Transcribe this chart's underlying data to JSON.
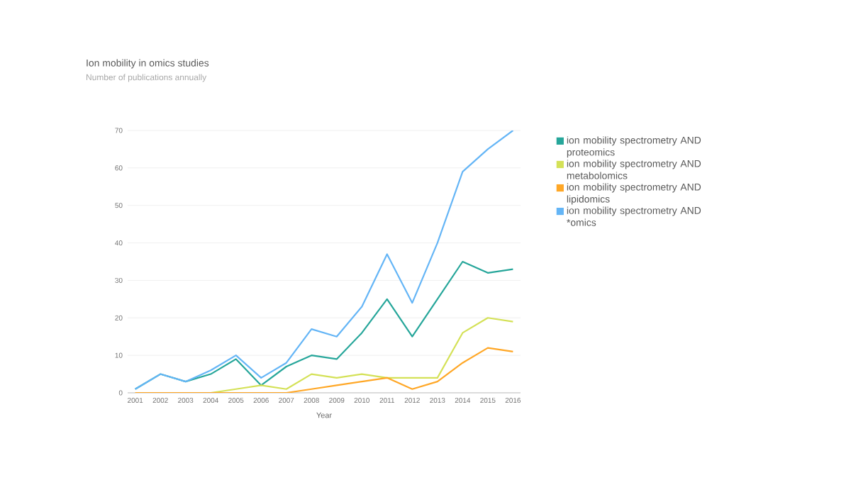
{
  "chart_data": {
    "type": "line",
    "title": "Ion mobility in omics studies",
    "subtitle": "Number of publications annually",
    "xlabel": "Year",
    "categories": [
      "2001",
      "2002",
      "2003",
      "2004",
      "2005",
      "2006",
      "2007",
      "2008",
      "2009",
      "2010",
      "2011",
      "2012",
      "2013",
      "2014",
      "2015",
      "2016"
    ],
    "series": [
      {
        "name": "ion mobility spectrometry AND proteomics",
        "color": "#26a69a",
        "values": [
          1,
          5,
          3,
          5,
          9,
          2,
          7,
          10,
          9,
          16,
          25,
          15,
          25,
          35,
          32,
          33
        ]
      },
      {
        "name": "ion mobility spectrometry AND metabolomics",
        "color": "#d4e157",
        "values": [
          0,
          0,
          0,
          0,
          1,
          2,
          1,
          5,
          4,
          5,
          4,
          4,
          4,
          16,
          20,
          19
        ]
      },
      {
        "name": "ion mobility spectrometry AND lipidomics",
        "color": "#ffa726",
        "values": [
          0,
          0,
          0,
          0,
          0,
          0,
          0,
          1,
          2,
          3,
          4,
          1,
          3,
          8,
          12,
          11
        ]
      },
      {
        "name": "ion mobility spectrometry AND *omics",
        "color": "#64b5f6",
        "values": [
          1,
          5,
          3,
          6,
          10,
          4,
          8,
          17,
          15,
          23,
          37,
          24,
          40,
          59,
          65,
          70
        ]
      }
    ],
    "ylim": [
      0,
      70
    ],
    "yticks": [
      0,
      10,
      20,
      30,
      40,
      50,
      60,
      70
    ],
    "grid": "y",
    "legend": "right",
    "marker": "none",
    "line_style": "solid"
  }
}
